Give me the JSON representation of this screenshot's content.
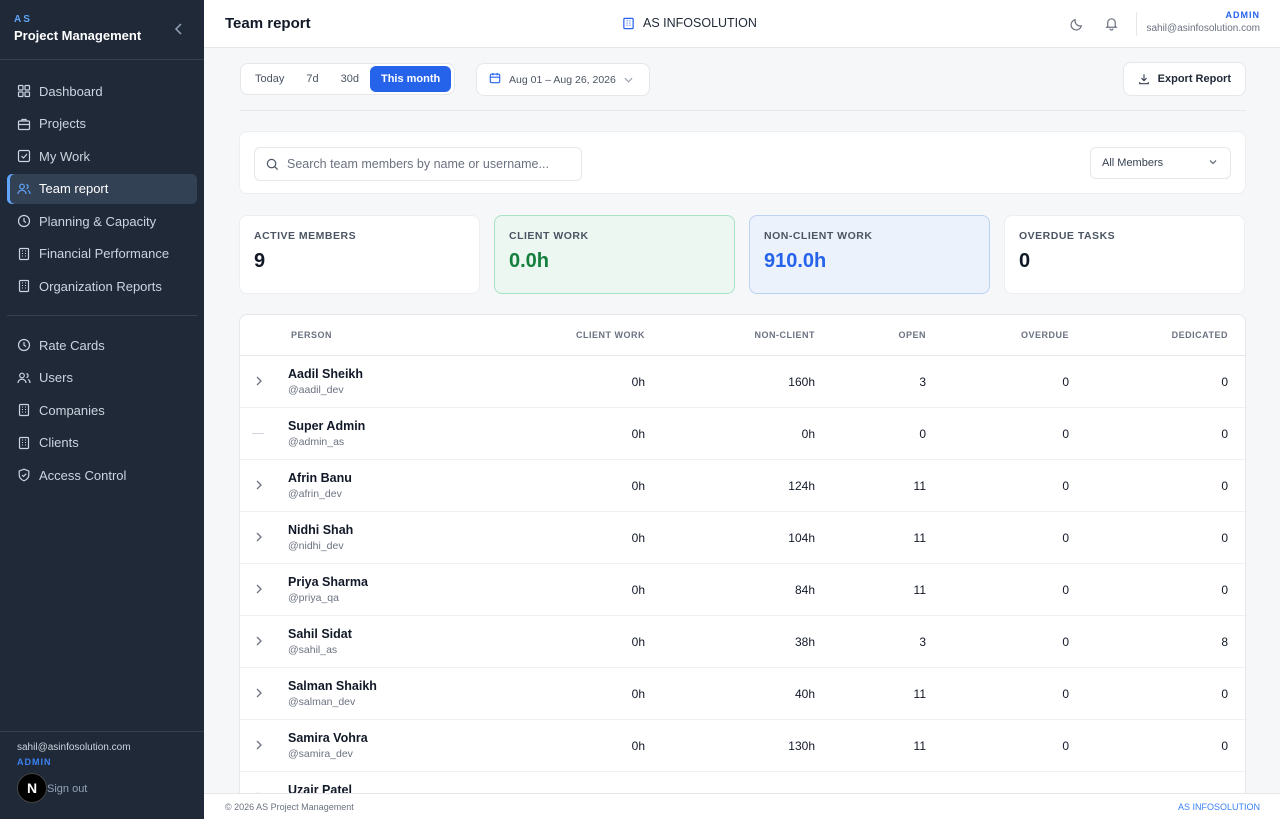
{
  "sidebar": {
    "brand_small": "AS",
    "brand_title": "Project Management",
    "collapse_icon": "chevron-left-icon",
    "items": [
      {
        "label": "Dashboard",
        "icon": "grid-icon"
      },
      {
        "label": "Projects",
        "icon": "briefcase-icon"
      },
      {
        "label": "My Work",
        "icon": "check-square-icon"
      },
      {
        "label": "Team report",
        "icon": "users-icon",
        "active": true
      },
      {
        "label": "Planning & Capacity",
        "icon": "clock-icon"
      },
      {
        "label": "Financial Performance",
        "icon": "building-icon"
      },
      {
        "label": "Organization Reports",
        "icon": "building-icon"
      }
    ],
    "items2": [
      {
        "label": "Rate Cards",
        "icon": "clock-icon"
      },
      {
        "label": "Users",
        "icon": "users-icon"
      },
      {
        "label": "Companies",
        "icon": "building-icon"
      },
      {
        "label": "Clients",
        "icon": "building-icon"
      },
      {
        "label": "Access Control",
        "icon": "shield-icon"
      }
    ],
    "footer": {
      "email": "sahil@asinfosolution.com",
      "role": "ADMIN",
      "signout": "Sign out",
      "badge": "N"
    }
  },
  "header": {
    "title": "Team report",
    "org": "AS INFOSOLUTION",
    "role": "ADMIN",
    "email": "sahil@asinfosolution.com"
  },
  "toolbar": {
    "ranges": [
      "Today",
      "7d",
      "30d",
      "This month"
    ],
    "active_range": "This month",
    "date_range": "Aug 01 – Aug 26, 2026",
    "export_label": "Export Report"
  },
  "filters": {
    "search_placeholder": "Search team members by name or username...",
    "member_filter": "All Members"
  },
  "stats": [
    {
      "label": "ACTIVE MEMBERS",
      "value": "9"
    },
    {
      "label": "CLIENT WORK",
      "value": "0.0h"
    },
    {
      "label": "NON-CLIENT WORK",
      "value": "910.0h"
    },
    {
      "label": "OVERDUE TASKS",
      "value": "0"
    }
  ],
  "table": {
    "columns": [
      "PERSON",
      "CLIENT WORK",
      "NON-CLIENT",
      "OPEN",
      "OVERDUE",
      "DEDICATED"
    ],
    "rows": [
      {
        "name": "Aadil Sheikh",
        "username": "@aadil_dev",
        "client": "0h",
        "nonclient": "160h",
        "open": "3",
        "overdue": "0",
        "dedicated": "0",
        "expandable": true
      },
      {
        "name": "Super Admin",
        "username": "@admin_as",
        "client": "0h",
        "nonclient": "0h",
        "open": "0",
        "overdue": "0",
        "dedicated": "0",
        "expandable": false
      },
      {
        "name": "Afrin Banu",
        "username": "@afrin_dev",
        "client": "0h",
        "nonclient": "124h",
        "open": "11",
        "overdue": "0",
        "dedicated": "0",
        "expandable": true
      },
      {
        "name": "Nidhi Shah",
        "username": "@nidhi_dev",
        "client": "0h",
        "nonclient": "104h",
        "open": "11",
        "overdue": "0",
        "dedicated": "0",
        "expandable": true
      },
      {
        "name": "Priya Sharma",
        "username": "@priya_qa",
        "client": "0h",
        "nonclient": "84h",
        "open": "11",
        "overdue": "0",
        "dedicated": "0",
        "expandable": true
      },
      {
        "name": "Sahil Sidat",
        "username": "@sahil_as",
        "client": "0h",
        "nonclient": "38h",
        "open": "3",
        "overdue": "0",
        "dedicated": "8",
        "expandable": true
      },
      {
        "name": "Salman Shaikh",
        "username": "@salman_dev",
        "client": "0h",
        "nonclient": "40h",
        "open": "11",
        "overdue": "0",
        "dedicated": "0",
        "expandable": true
      },
      {
        "name": "Samira Vohra",
        "username": "@samira_dev",
        "client": "0h",
        "nonclient": "130h",
        "open": "11",
        "overdue": "0",
        "dedicated": "0",
        "expandable": true
      },
      {
        "name": "Uzair Patel",
        "username": "",
        "client": "",
        "nonclient": "",
        "open": "",
        "overdue": "",
        "dedicated": "",
        "expandable": true
      }
    ]
  },
  "footer": {
    "left": "© 2026 AS Project Management",
    "right": "AS INFOSOLUTION"
  }
}
